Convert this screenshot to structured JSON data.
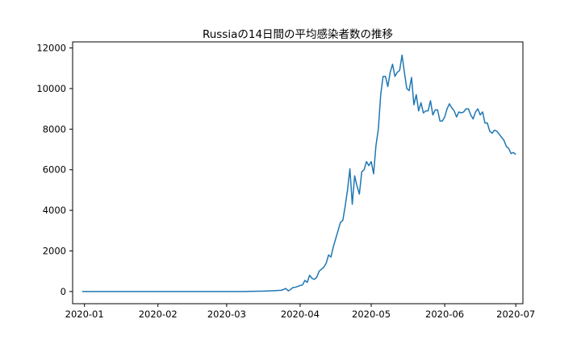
{
  "chart_data": {
    "type": "line",
    "title": "Russiaの14日間の平均感染者数の推移",
    "xlabel": "",
    "ylabel": "",
    "xlim": [
      "2019-12-27",
      "2020-07-04"
    ],
    "ylim": [
      -600,
      12300
    ],
    "x_ticks": [
      {
        "label": "2020-01",
        "date": "2020-01-01"
      },
      {
        "label": "2020-02",
        "date": "2020-02-01"
      },
      {
        "label": "2020-03",
        "date": "2020-03-01"
      },
      {
        "label": "2020-04",
        "date": "2020-04-01"
      },
      {
        "label": "2020-05",
        "date": "2020-05-01"
      },
      {
        "label": "2020-06",
        "date": "2020-06-01"
      },
      {
        "label": "2020-07",
        "date": "2020-07-01"
      }
    ],
    "y_ticks": [
      {
        "label": "0",
        "value": 0
      },
      {
        "label": "2000",
        "value": 2000
      },
      {
        "label": "4000",
        "value": 4000
      },
      {
        "label": "6000",
        "value": 6000
      },
      {
        "label": "8000",
        "value": 8000
      },
      {
        "label": "10000",
        "value": 10000
      },
      {
        "label": "12000",
        "value": 12000
      }
    ],
    "grid": false,
    "legend": "none",
    "series": [
      {
        "color": "#1f77b4",
        "points": [
          [
            "2019-12-31",
            0
          ],
          [
            "2020-01-15",
            0
          ],
          [
            "2020-02-01",
            0
          ],
          [
            "2020-02-15",
            0
          ],
          [
            "2020-03-01",
            0
          ],
          [
            "2020-03-08",
            2
          ],
          [
            "2020-03-12",
            8
          ],
          [
            "2020-03-15",
            15
          ],
          [
            "2020-03-17",
            20
          ],
          [
            "2020-03-19",
            30
          ],
          [
            "2020-03-21",
            40
          ],
          [
            "2020-03-23",
            55
          ],
          [
            "2020-03-24",
            60
          ],
          [
            "2020-03-25",
            100
          ],
          [
            "2020-03-26",
            150
          ],
          [
            "2020-03-27",
            30
          ],
          [
            "2020-03-28",
            100
          ],
          [
            "2020-03-29",
            200
          ],
          [
            "2020-03-30",
            210
          ],
          [
            "2020-03-31",
            250
          ],
          [
            "2020-04-01",
            300
          ],
          [
            "2020-04-02",
            320
          ],
          [
            "2020-04-03",
            550
          ],
          [
            "2020-04-04",
            450
          ],
          [
            "2020-04-05",
            800
          ],
          [
            "2020-04-06",
            650
          ],
          [
            "2020-04-07",
            600
          ],
          [
            "2020-04-08",
            700
          ],
          [
            "2020-04-09",
            1000
          ],
          [
            "2020-04-10",
            1100
          ],
          [
            "2020-04-11",
            1200
          ],
          [
            "2020-04-12",
            1400
          ],
          [
            "2020-04-13",
            1800
          ],
          [
            "2020-04-14",
            1700
          ],
          [
            "2020-04-15",
            2200
          ],
          [
            "2020-04-16",
            2600
          ],
          [
            "2020-04-17",
            3000
          ],
          [
            "2020-04-18",
            3400
          ],
          [
            "2020-04-19",
            3500
          ],
          [
            "2020-04-20",
            4200
          ],
          [
            "2020-04-21",
            5000
          ],
          [
            "2020-04-22",
            6050
          ],
          [
            "2020-04-23",
            4300
          ],
          [
            "2020-04-24",
            5700
          ],
          [
            "2020-04-25",
            5200
          ],
          [
            "2020-04-26",
            4800
          ],
          [
            "2020-04-27",
            5900
          ],
          [
            "2020-04-28",
            6000
          ],
          [
            "2020-04-29",
            6400
          ],
          [
            "2020-04-30",
            6200
          ],
          [
            "2020-05-01",
            6400
          ],
          [
            "2020-05-02",
            5800
          ],
          [
            "2020-05-03",
            7200
          ],
          [
            "2020-05-04",
            8000
          ],
          [
            "2020-05-05",
            9700
          ],
          [
            "2020-05-06",
            10600
          ],
          [
            "2020-05-07",
            10600
          ],
          [
            "2020-05-08",
            10100
          ],
          [
            "2020-05-09",
            10800
          ],
          [
            "2020-05-10",
            11200
          ],
          [
            "2020-05-11",
            10600
          ],
          [
            "2020-05-12",
            10800
          ],
          [
            "2020-05-13",
            10900
          ],
          [
            "2020-05-14",
            11650
          ],
          [
            "2020-05-15",
            10800
          ],
          [
            "2020-05-16",
            10000
          ],
          [
            "2020-05-17",
            9900
          ],
          [
            "2020-05-18",
            10550
          ],
          [
            "2020-05-19",
            9200
          ],
          [
            "2020-05-20",
            9700
          ],
          [
            "2020-05-21",
            8900
          ],
          [
            "2020-05-22",
            9300
          ],
          [
            "2020-05-23",
            8800
          ],
          [
            "2020-05-24",
            8900
          ],
          [
            "2020-05-25",
            8900
          ],
          [
            "2020-05-26",
            9400
          ],
          [
            "2020-05-27",
            8700
          ],
          [
            "2020-05-28",
            8950
          ],
          [
            "2020-05-29",
            8950
          ],
          [
            "2020-05-30",
            8400
          ],
          [
            "2020-05-31",
            8400
          ],
          [
            "2020-06-01",
            8600
          ],
          [
            "2020-06-02",
            9000
          ],
          [
            "2020-06-03",
            9250
          ],
          [
            "2020-06-04",
            9050
          ],
          [
            "2020-06-05",
            8900
          ],
          [
            "2020-06-06",
            8600
          ],
          [
            "2020-06-07",
            8850
          ],
          [
            "2020-06-08",
            8800
          ],
          [
            "2020-06-09",
            8850
          ],
          [
            "2020-06-10",
            9000
          ],
          [
            "2020-06-11",
            9000
          ],
          [
            "2020-06-12",
            8700
          ],
          [
            "2020-06-13",
            8500
          ],
          [
            "2020-06-14",
            8850
          ],
          [
            "2020-06-15",
            9000
          ],
          [
            "2020-06-16",
            8700
          ],
          [
            "2020-06-17",
            8850
          ],
          [
            "2020-06-18",
            8300
          ],
          [
            "2020-06-19",
            8300
          ],
          [
            "2020-06-20",
            7900
          ],
          [
            "2020-06-21",
            7800
          ],
          [
            "2020-06-22",
            7950
          ],
          [
            "2020-06-23",
            7900
          ],
          [
            "2020-06-24",
            7750
          ],
          [
            "2020-06-25",
            7600
          ],
          [
            "2020-06-26",
            7450
          ],
          [
            "2020-06-27",
            7150
          ],
          [
            "2020-06-28",
            7050
          ],
          [
            "2020-06-29",
            6800
          ],
          [
            "2020-06-30",
            6850
          ],
          [
            "2020-07-01",
            6750
          ]
        ]
      }
    ]
  }
}
